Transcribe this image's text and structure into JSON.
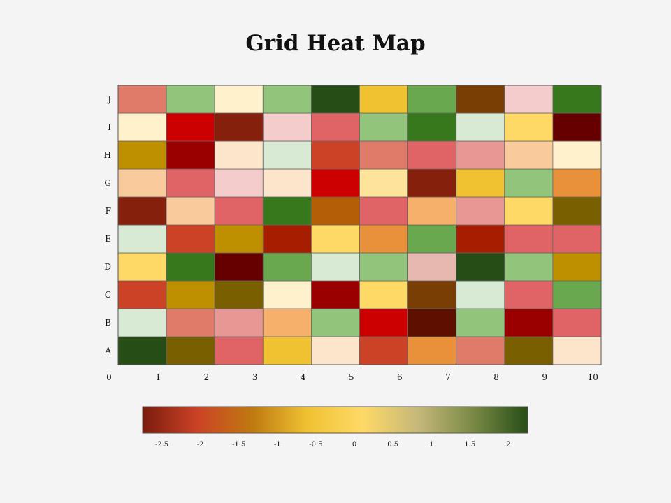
{
  "chart_data": {
    "type": "heatmap",
    "title": "Grid Heat Map",
    "x_ticks": [
      "0",
      "1",
      "2",
      "3",
      "4",
      "5",
      "6",
      "7",
      "8",
      "9",
      "10"
    ],
    "y_categories": [
      "A",
      "B",
      "C",
      "D",
      "E",
      "F",
      "G",
      "H",
      "I",
      "J"
    ],
    "rows": [
      {
        "label": "A",
        "values": [
          "#264d16",
          "#7a5f00",
          "#e06465",
          "#f0c232",
          "#fde5cc",
          "#cc4226",
          "#e8903a",
          "#e07b6a",
          "#7a5f00",
          "#fde5cc"
        ]
      },
      {
        "label": "B",
        "values": [
          "#d8ead4",
          "#e07b6a",
          "#e89894",
          "#f7b06c",
          "#92c47c",
          "#cc0001",
          "#5d0f00",
          "#92c47c",
          "#9a0000",
          "#e06465"
        ]
      },
      {
        "label": "C",
        "values": [
          "#cc4226",
          "#be9000",
          "#7a5f00",
          "#fef1cc",
          "#9a0000",
          "#fed966",
          "#783e04",
          "#d8ead4",
          "#e06465",
          "#6aa84f"
        ]
      },
      {
        "label": "D",
        "values": [
          "#fed966",
          "#37781c",
          "#660000",
          "#6aa84f",
          "#d8ead4",
          "#92c47c",
          "#e6b8af",
          "#264d16",
          "#92c47c",
          "#be9000"
        ]
      },
      {
        "label": "E",
        "values": [
          "#d8ead4",
          "#cc4226",
          "#be9000",
          "#a61d00",
          "#fed966",
          "#e8903a",
          "#6aa84f",
          "#a61d00",
          "#e06465",
          "#e06465"
        ]
      },
      {
        "label": "F",
        "values": [
          "#85200c",
          "#f9cb9c",
          "#e06465",
          "#37781c",
          "#b45f06",
          "#e06465",
          "#f7b06c",
          "#e89894",
          "#fed966",
          "#7a5f00"
        ]
      },
      {
        "label": "G",
        "values": [
          "#f9cb9c",
          "#e06465",
          "#f4cccc",
          "#fde5cc",
          "#cc0001",
          "#fee49a",
          "#85200c",
          "#f0c232",
          "#92c47c",
          "#e8903a"
        ]
      },
      {
        "label": "H",
        "values": [
          "#be9000",
          "#9a0000",
          "#fde5cc",
          "#d8ead4",
          "#cc4226",
          "#e07b6a",
          "#e06465",
          "#e89894",
          "#f9cb9c",
          "#fef1cc"
        ]
      },
      {
        "label": "I",
        "values": [
          "#fef1cc",
          "#cc0001",
          "#85200c",
          "#f4cccc",
          "#e06465",
          "#92c47c",
          "#37781c",
          "#d8ead4",
          "#fed966",
          "#660000"
        ]
      },
      {
        "label": "J",
        "values": [
          "#e07b6a",
          "#92c47c",
          "#fef1cc",
          "#92c47c",
          "#264d16",
          "#f0c232",
          "#6aa84f",
          "#783e04",
          "#f4cccc",
          "#37781c"
        ]
      }
    ],
    "colorbar": {
      "labels": [
        "-2.5",
        "-2",
        "-1.5",
        "-1",
        "-0.5",
        "0",
        "0.5",
        "1",
        "1.5",
        "2"
      ],
      "min": -2.75,
      "max": 2.25,
      "stops": [
        "#7a1c0e",
        "#cc4226",
        "#be7a10",
        "#f0c232",
        "#fed966",
        "#c6b87a",
        "#7a8a45",
        "#264d16"
      ]
    },
    "grid": true
  }
}
